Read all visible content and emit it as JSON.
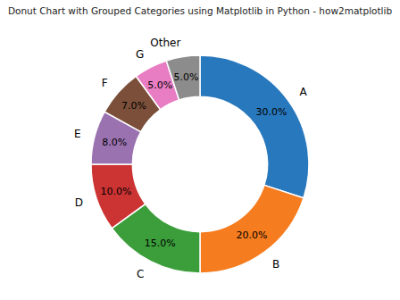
{
  "chart_data": {
    "type": "donut",
    "title": "Donut Chart with Grouped Categories using Matplotlib in Python - how2matplotlib",
    "categories": [
      "A",
      "B",
      "C",
      "D",
      "E",
      "F",
      "G",
      "Other"
    ],
    "values": [
      30.0,
      20.0,
      15.0,
      10.0,
      8.0,
      7.0,
      5.0,
      5.0
    ],
    "value_labels": [
      "30.0%",
      "20.0%",
      "15.0%",
      "10.0%",
      "8.0%",
      "7.0%",
      "5.0%",
      "5.0%"
    ],
    "colors": [
      "#2878BD",
      "#F57C1F",
      "#3B9E3B",
      "#CC3333",
      "#9B72B0",
      "#7B4F3A",
      "#E87DC3",
      "#8C8C8C"
    ],
    "data_labels": true
  }
}
